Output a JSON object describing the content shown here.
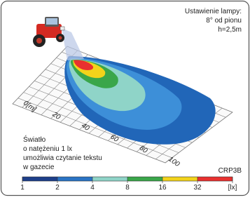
{
  "lamp_setting": {
    "title": "Ustawienie lampy:",
    "angle": "8° od pionu",
    "height": "h=2,5m"
  },
  "distance_labels": [
    "0[m]",
    "20",
    "40",
    "60",
    "80",
    "100"
  ],
  "note": [
    "Światło",
    "o natężeniu 1 lx",
    "umożliwia czytanie tekstu",
    "w gazecie"
  ],
  "model": "CRP3B",
  "scale": {
    "labels": [
      "1",
      "2",
      "4",
      "8",
      "16",
      "32",
      "[lx]"
    ]
  }
}
